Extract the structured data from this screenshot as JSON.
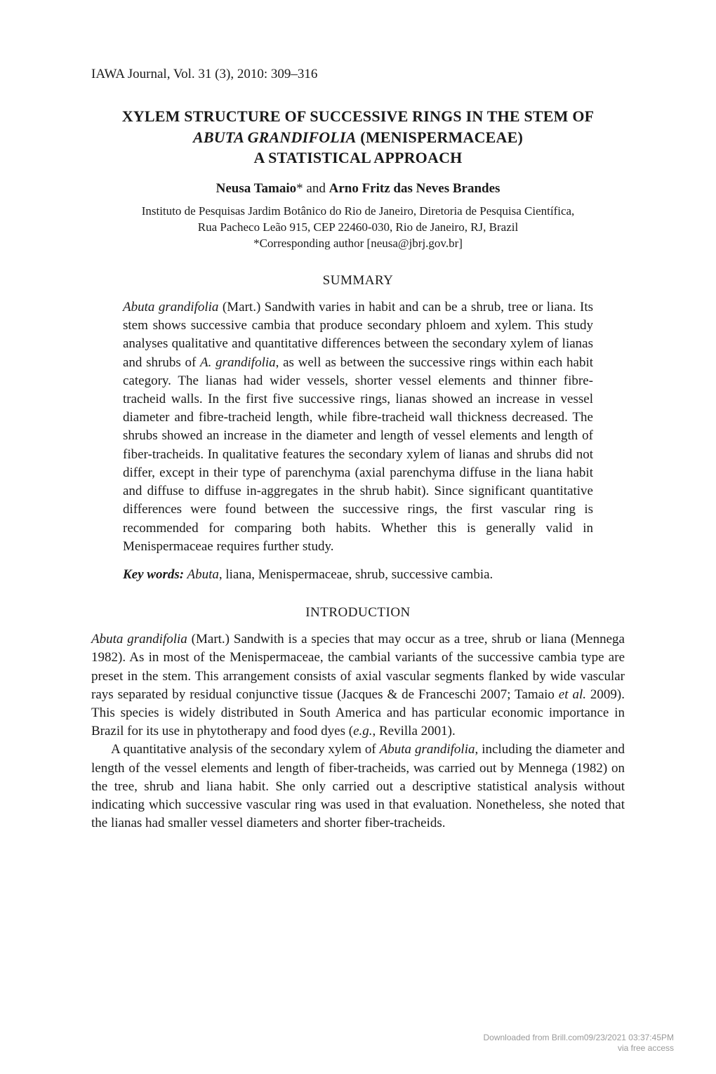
{
  "runningHead": "IAWA Journal, Vol. 31 (3), 2010: 309–316",
  "title": {
    "line1": "XYLEM STRUCTURE OF SUCCESSIVE RINGS IN THE STEM OF",
    "line2_ital": "ABUTA GRANDIFOLIA",
    "line2_rest": " (MENISPERMACEAE)",
    "line3": "A STATISTICAL APPROACH"
  },
  "authors": {
    "a1": "Neusa Tamaio",
    "sup": "*",
    "and": " and ",
    "a2": "Arno Fritz das Neves Brandes"
  },
  "affil": {
    "l1": "Instituto de Pesquisas Jardim Botânico do Rio de Janeiro, Diretoria de Pesquisa Científica,",
    "l2": "Rua Pacheco Leão 915, CEP 22460-030, Rio de Janeiro, RJ, Brazil",
    "l3": "*Corresponding author [neusa@jbrj.gov.br]"
  },
  "summaryHead": "SUMMARY",
  "abstract": {
    "lead_ital": "Abuta grandifolia",
    "lead_rest": " (Mart.) Sandwith varies in habit and can be a shrub, tree or liana. Its stem shows successive cambia that produce secondary phloem and xylem. This study analyses qualitative and quantitative differences between the secondary xylem of lianas and shrubs of ",
    "a_ital": "A. grandifolia",
    "rest": ", as well as between the successive rings within each habit category. The lianas had wider vessels, shorter vessel elements and thinner fibre-tracheid walls. In the first five successive rings, lianas showed an increase in vessel diameter and fibre-tracheid length, while fibre-tracheid wall thickness decreased. The shrubs showed an increase in the diameter and length of vessel elements and length of fiber-tracheids. In qualitative features the secondary xylem of lianas and shrubs did not differ, except in their type of parenchyma (axial parenchyma diffuse in the liana habit and diffuse to diffuse in-aggregates in the shrub habit). Since significant quantitative differences were found between the successive rings, the first vascular ring is recommended for comparing both habits. Whether this is generally valid in Menispermaceae requires further study."
  },
  "keywords": {
    "label": "Key words:",
    "val_ital": " Abuta",
    "val_rest": ", liana, Menispermaceae, shrub, successive cambia."
  },
  "introHead": "INTRODUCTION",
  "intro": {
    "p1_lead_ital": "Abuta grandifolia",
    "p1_rest_a": " (Mart.) Sandwith is a species that may occur as a tree, shrub or liana (Mennega 1982). As in most of the Menispermaceae, the cambial variants of the successive cambia type are preset in the stem. This arrangement consists of axial vascular segments flanked by wide vascular rays separated by residual conjunctive tissue (Jacques & de Franceschi 2007; Tamaio ",
    "p1_etal": "et al.",
    "p1_rest_b": " 2009). This species is widely distributed in South America and has particular economic importance in Brazil for its use in phytotherapy and food dyes (",
    "p1_eg": "e.g.",
    "p1_rest_c": ", Revilla 2001).",
    "p2_a": "A quantitative analysis of the secondary xylem of ",
    "p2_ital": "Abuta grandifolia",
    "p2_b": ", including the diameter and length of the vessel elements and length of fiber-tracheids, was carried out by Mennega (1982) on the tree, shrub and liana habit. She only carried out a descriptive statistical analysis without indicating which successive vascular ring was used in that evaluation. Nonetheless, she noted that the lianas had smaller vessel diameters and shorter fiber-tracheids."
  },
  "footer": {
    "l1": "Downloaded from Brill.com09/23/2021 03:37:45PM",
    "l2": "via free access"
  }
}
